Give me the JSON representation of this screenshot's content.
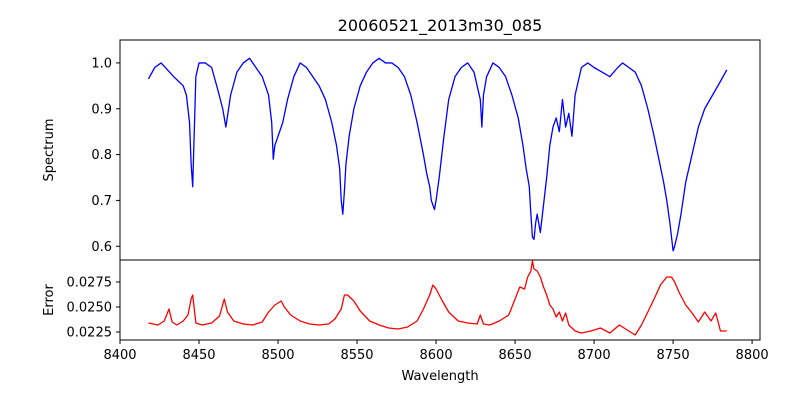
{
  "chart_data": [
    {
      "type": "line",
      "title": "20060521_2013m30_085",
      "xlabel": "",
      "ylabel": "Spectrum",
      "xlim": [
        8400,
        8805
      ],
      "ylim": [
        0.57,
        1.05
      ],
      "yticks": [
        0.6,
        0.7,
        0.8,
        0.9,
        1.0
      ],
      "ytick_labels": [
        "0.6",
        "0.7",
        "0.8",
        "0.9",
        "1.0"
      ],
      "grid": false,
      "series": [
        {
          "color": "#0000ff",
          "x": [
            8418,
            8422,
            8426,
            8430,
            8434,
            8437,
            8440,
            8442,
            8444,
            8445,
            8446,
            8448,
            8450,
            8454,
            8458,
            8462,
            8465,
            8467,
            8470,
            8474,
            8478,
            8482,
            8486,
            8490,
            8494,
            8496,
            8497,
            8498,
            8500,
            8503,
            8506,
            8510,
            8514,
            8518,
            8522,
            8526,
            8530,
            8534,
            8537,
            8539,
            8540,
            8541,
            8542,
            8543,
            8545,
            8548,
            8552,
            8556,
            8560,
            8564,
            8568,
            8572,
            8576,
            8580,
            8584,
            8588,
            8592,
            8594,
            8596,
            8597,
            8598,
            8599,
            8600,
            8602,
            8605,
            8608,
            8612,
            8616,
            8620,
            8624,
            8628,
            8629,
            8630,
            8632,
            8636,
            8640,
            8644,
            8648,
            8652,
            8655,
            8657,
            8659,
            8660,
            8661,
            8662,
            8663,
            8664,
            8666,
            8668,
            8670,
            8672,
            8674,
            8676,
            8678,
            8680,
            8682,
            8684,
            8686,
            8688,
            8690,
            8692,
            8696,
            8700,
            8705,
            8710,
            8715,
            8718,
            8722,
            8726,
            8730,
            8734,
            8738,
            8741,
            8744,
            8746,
            8748,
            8749,
            8750,
            8751,
            8753,
            8755,
            8758,
            8762,
            8766,
            8770,
            8775,
            8780,
            8784
          ],
          "y": [
            0.965,
            0.99,
            1.0,
            0.985,
            0.97,
            0.96,
            0.95,
            0.93,
            0.87,
            0.78,
            0.73,
            0.97,
            1.0,
            1.0,
            0.99,
            0.94,
            0.9,
            0.86,
            0.93,
            0.98,
            1.0,
            1.01,
            0.99,
            0.97,
            0.93,
            0.87,
            0.79,
            0.82,
            0.84,
            0.87,
            0.92,
            0.97,
            1.0,
            0.99,
            0.97,
            0.95,
            0.92,
            0.87,
            0.82,
            0.77,
            0.7,
            0.67,
            0.72,
            0.78,
            0.84,
            0.9,
            0.95,
            0.98,
            1.0,
            1.01,
            1.0,
            1.0,
            0.99,
            0.97,
            0.93,
            0.87,
            0.8,
            0.76,
            0.73,
            0.7,
            0.69,
            0.68,
            0.7,
            0.75,
            0.84,
            0.92,
            0.97,
            0.99,
            1.0,
            0.98,
            0.92,
            0.86,
            0.93,
            0.97,
            1.0,
            0.99,
            0.97,
            0.93,
            0.88,
            0.82,
            0.77,
            0.73,
            0.67,
            0.62,
            0.615,
            0.65,
            0.67,
            0.63,
            0.69,
            0.75,
            0.82,
            0.86,
            0.88,
            0.85,
            0.92,
            0.86,
            0.89,
            0.84,
            0.93,
            0.96,
            0.99,
            1.0,
            0.99,
            0.98,
            0.97,
            0.99,
            1.0,
            0.99,
            0.98,
            0.95,
            0.9,
            0.84,
            0.79,
            0.74,
            0.7,
            0.65,
            0.62,
            0.59,
            0.6,
            0.63,
            0.67,
            0.74,
            0.8,
            0.86,
            0.9,
            0.93,
            0.96,
            0.985
          ]
        }
      ]
    },
    {
      "type": "line",
      "title": "",
      "xlabel": "Wavelength",
      "ylabel": "Error",
      "xlim": [
        8400,
        8805
      ],
      "ylim": [
        0.0217,
        0.0297
      ],
      "xticks": [
        8400,
        8450,
        8500,
        8550,
        8600,
        8650,
        8700,
        8750,
        8800
      ],
      "xtick_labels": [
        "8400",
        "8450",
        "8500",
        "8550",
        "8600",
        "8650",
        "8700",
        "8750",
        "8800"
      ],
      "yticks": [
        0.0225,
        0.025,
        0.0275
      ],
      "ytick_labels": [
        "0.0225",
        "0.0250",
        "0.0275"
      ],
      "grid": false,
      "series": [
        {
          "color": "#ff0000",
          "x": [
            8418,
            8424,
            8428,
            8431,
            8433,
            8436,
            8440,
            8443,
            8445,
            8446,
            8448,
            8452,
            8458,
            8463,
            8466,
            8468,
            8472,
            8478,
            8484,
            8490,
            8494,
            8498,
            8502,
            8504,
            8508,
            8514,
            8520,
            8526,
            8532,
            8536,
            8540,
            8542,
            8544,
            8548,
            8552,
            8558,
            8564,
            8570,
            8576,
            8582,
            8588,
            8592,
            8596,
            8598,
            8600,
            8604,
            8608,
            8614,
            8620,
            8626,
            8628,
            8630,
            8634,
            8640,
            8646,
            8650,
            8653,
            8656,
            8658,
            8660,
            8661,
            8662,
            8664,
            8666,
            8668,
            8670,
            8672,
            8674,
            8676,
            8678,
            8680,
            8682,
            8684,
            8688,
            8692,
            8698,
            8704,
            8710,
            8716,
            8722,
            8726,
            8730,
            8734,
            8738,
            8742,
            8746,
            8749,
            8751,
            8754,
            8758,
            8762,
            8766,
            8770,
            8774,
            8777,
            8780,
            8784
          ],
          "y": [
            0.0234,
            0.0232,
            0.0236,
            0.0248,
            0.0235,
            0.0232,
            0.0236,
            0.0242,
            0.0258,
            0.0262,
            0.0234,
            0.0232,
            0.0234,
            0.0241,
            0.0258,
            0.0245,
            0.0236,
            0.0233,
            0.0232,
            0.0235,
            0.0245,
            0.0252,
            0.0256,
            0.025,
            0.0242,
            0.0236,
            0.0233,
            0.0232,
            0.0233,
            0.0238,
            0.0248,
            0.0262,
            0.0262,
            0.0256,
            0.0246,
            0.0236,
            0.0232,
            0.0229,
            0.0228,
            0.023,
            0.0236,
            0.0248,
            0.0262,
            0.0272,
            0.0268,
            0.0256,
            0.0245,
            0.0236,
            0.0234,
            0.0233,
            0.0242,
            0.0233,
            0.0232,
            0.0236,
            0.0242,
            0.0258,
            0.027,
            0.0268,
            0.028,
            0.0286,
            0.0296,
            0.0288,
            0.0286,
            0.028,
            0.027,
            0.0262,
            0.0252,
            0.0248,
            0.024,
            0.0245,
            0.0236,
            0.0244,
            0.0232,
            0.0226,
            0.0224,
            0.0226,
            0.0229,
            0.0224,
            0.0232,
            0.0226,
            0.0222,
            0.0232,
            0.0245,
            0.0258,
            0.0272,
            0.028,
            0.028,
            0.0275,
            0.0264,
            0.0252,
            0.0244,
            0.0235,
            0.0245,
            0.0236,
            0.0244,
            0.0226,
            0.0226
          ]
        }
      ]
    }
  ]
}
